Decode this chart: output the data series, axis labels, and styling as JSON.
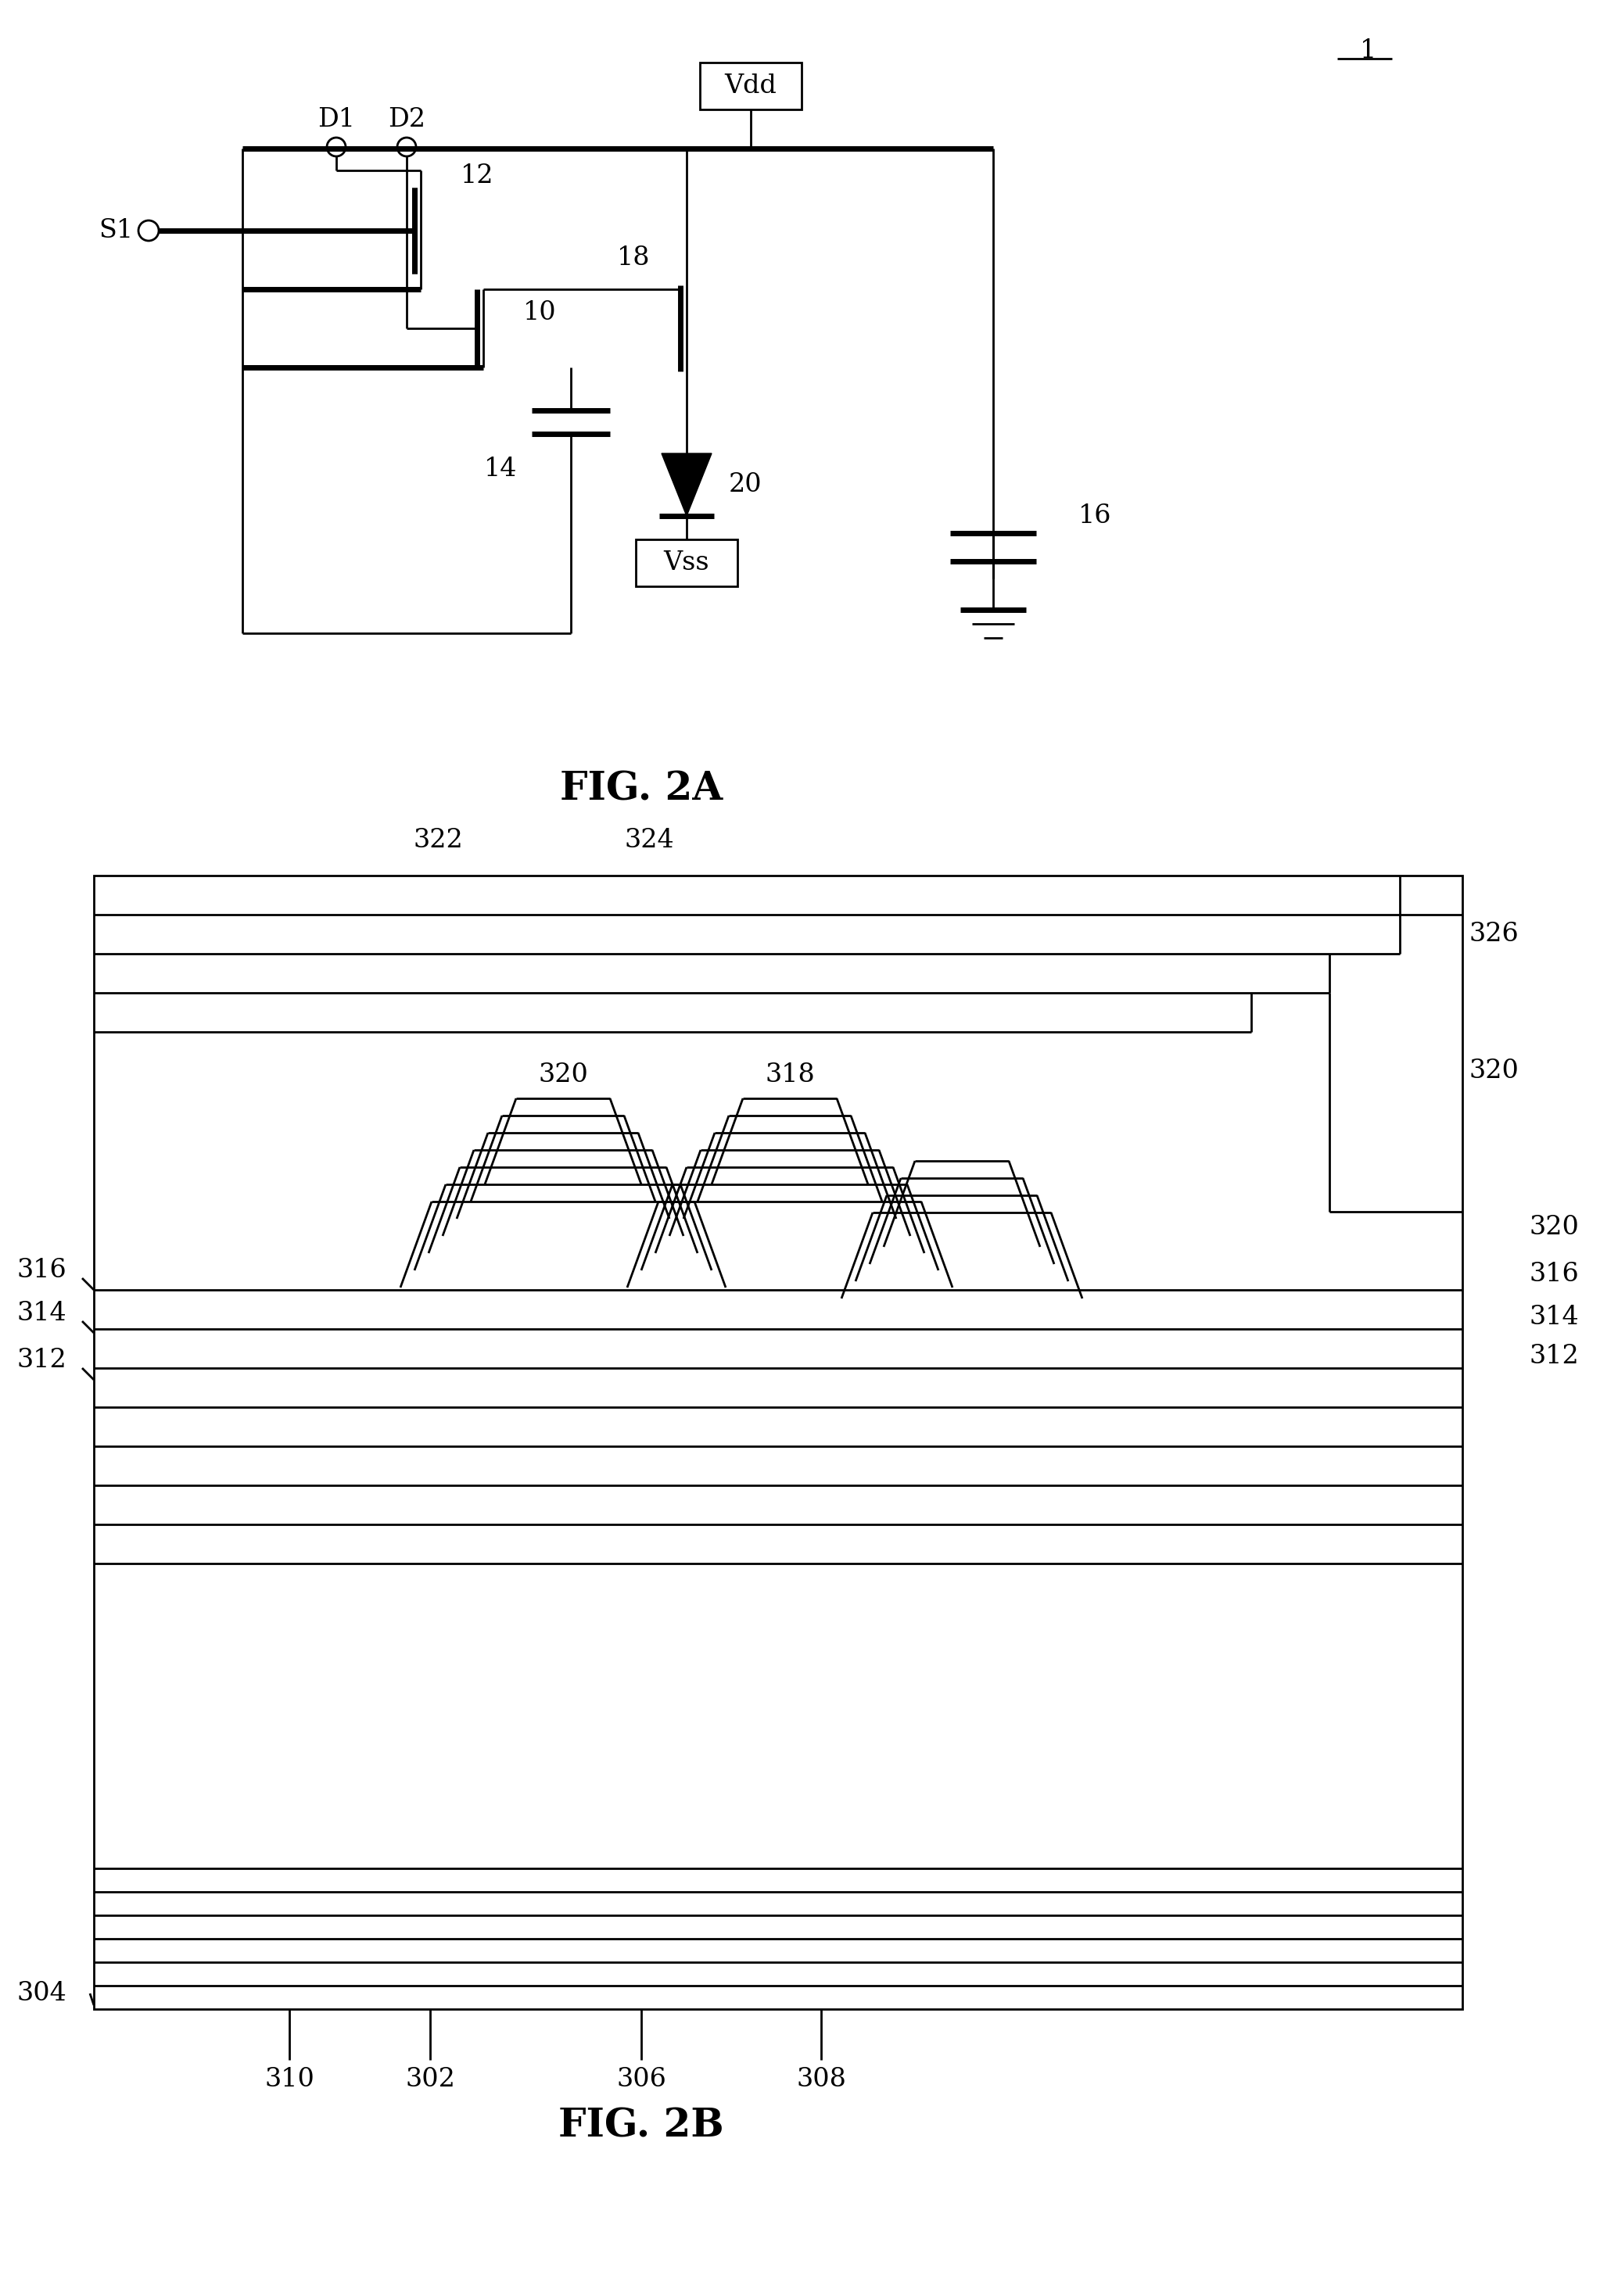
{
  "bg": "#ffffff",
  "lc": "#000000",
  "lw": 2.0,
  "tlw": 5.0,
  "fig2a_label": "FIG. 2A",
  "fig2b_label": "FIG. 2B",
  "label_1": "1",
  "fs": 24,
  "fs_fig": 36,
  "fs_small": 20
}
